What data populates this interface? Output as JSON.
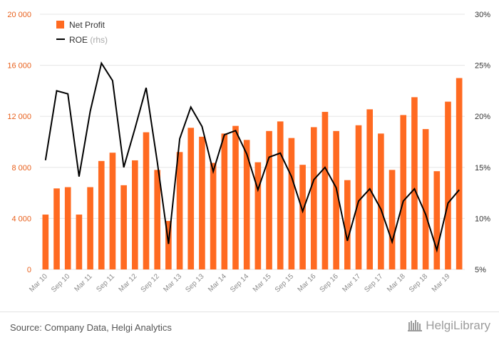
{
  "chart_data": {
    "type": "bar+line",
    "title": "",
    "categories": [
      "Mar 10",
      "Jun 10",
      "Sep 10",
      "Dec 10",
      "Mar 11",
      "Jun 11",
      "Sep 11",
      "Dec 11",
      "Mar 12",
      "Jun 12",
      "Sep 12",
      "Dec 12",
      "Mar 13",
      "Jun 13",
      "Sep 13",
      "Dec 13",
      "Mar 14",
      "Jun 14",
      "Sep 14",
      "Dec 14",
      "Mar 15",
      "Jun 15",
      "Sep 15",
      "Dec 15",
      "Mar 16",
      "Jun 16",
      "Sep 16",
      "Dec 16",
      "Mar 17",
      "Jun 17",
      "Sep 17",
      "Dec 17",
      "Mar 18",
      "Jun 18",
      "Sep 18",
      "Dec 18",
      "Mar 19",
      "Jun 19"
    ],
    "x_tick_labels": [
      "Mar 10",
      "Sep 10",
      "Mar 11",
      "Sep 11",
      "Mar 12",
      "Sep 12",
      "Mar 13",
      "Sep 13",
      "Mar 14",
      "Sep 14",
      "Mar 15",
      "Sep 15",
      "Mar 16",
      "Sep 16",
      "Mar 17",
      "Sep 17",
      "Mar 18",
      "Sep 18",
      "Mar 19"
    ],
    "series": [
      {
        "name": "Net Profit",
        "type": "bar",
        "axis": "left",
        "color": "#ff6a21",
        "values": [
          4300,
          6350,
          6450,
          4300,
          6450,
          8500,
          9150,
          6600,
          8550,
          10750,
          7800,
          3800,
          9200,
          11100,
          10400,
          8350,
          10650,
          11250,
          10150,
          8400,
          10850,
          11600,
          10300,
          8200,
          11150,
          12350,
          10850,
          7000,
          11300,
          12550,
          10650,
          7800,
          12100,
          13500,
          11000,
          7700,
          13150,
          15000
        ]
      },
      {
        "name": "ROE",
        "name_suffix": "(rhs)",
        "type": "line",
        "axis": "right",
        "color": "#000000",
        "values": [
          15.7,
          22.5,
          22.2,
          14.1,
          20.5,
          25.2,
          23.5,
          15.0,
          18.8,
          22.8,
          15.5,
          7.5,
          17.8,
          20.9,
          19.0,
          14.6,
          18.2,
          18.6,
          16.3,
          12.8,
          16.0,
          16.4,
          14.1,
          10.7,
          13.8,
          15.0,
          13.0,
          7.8,
          11.7,
          12.9,
          10.9,
          7.7,
          11.7,
          12.9,
          10.4,
          6.9,
          11.5,
          12.8
        ]
      }
    ],
    "y_left": {
      "ticks": [
        "0",
        "4 000",
        "8 000",
        "12 000",
        "16 000",
        "20 000"
      ],
      "ylim": [
        0,
        20000
      ]
    },
    "y_right": {
      "ticks": [
        "5%",
        "10%",
        "15%",
        "20%",
        "25%",
        "30%"
      ],
      "ylim": [
        5,
        30
      ]
    },
    "grid": "horizontal",
    "legend_position": "top-left"
  },
  "footer": {
    "source": "Source: Company Data, Helgi Analytics",
    "brand_name": "HelgiLibrary"
  },
  "colors": {
    "bar": "#ff6a21",
    "line": "#000000",
    "grid": "#e6e6e6",
    "left_axis_text": "#e8601c"
  }
}
